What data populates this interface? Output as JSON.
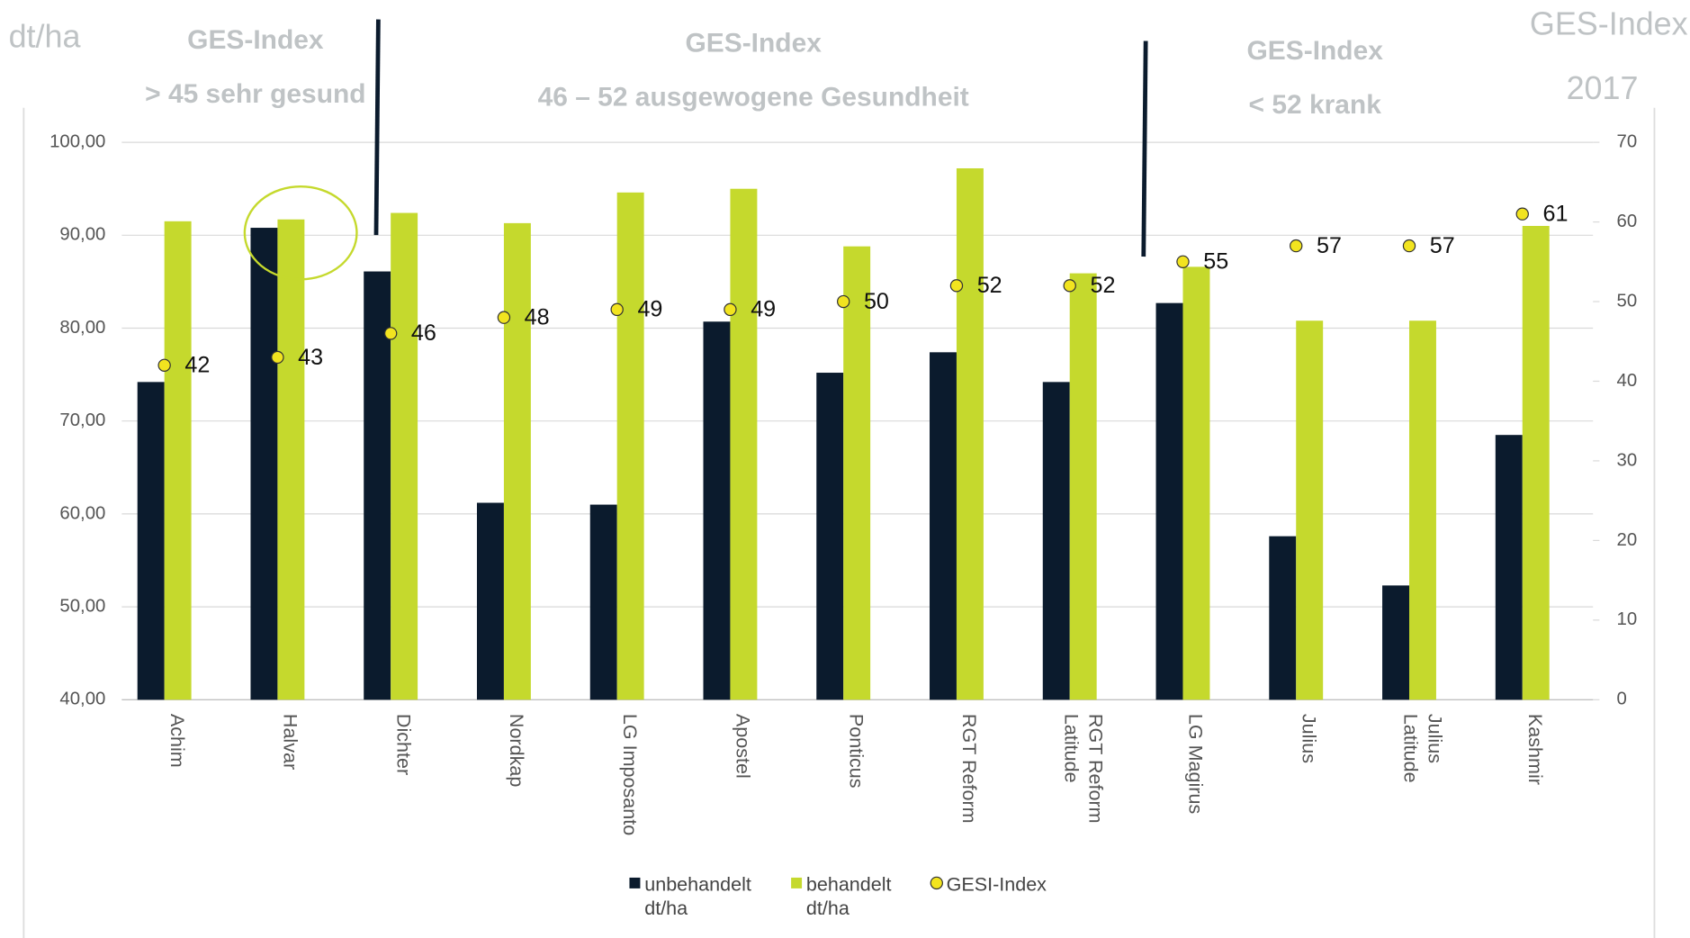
{
  "chart_data": {
    "type": "bar",
    "header": {
      "unit_left": "dt/ha",
      "unit_right": "GES-Index",
      "year": "2017",
      "zones": [
        {
          "title": "GES-Index",
          "subtitle": "> 45 sehr gesund"
        },
        {
          "title": "GES-Index",
          "subtitle": "46 – 52 ausgewogene Gesundheit"
        },
        {
          "title": "GES-Index",
          "subtitle": "< 52 krank"
        }
      ]
    },
    "categories": [
      "Achim",
      "Halvar",
      "Dichter",
      "Nordkap",
      "LG Imposanto",
      "Apostel",
      "Ponticus",
      "RGT Reform",
      "RGT Reform\nLatitude",
      "LG Magirus",
      "Julius",
      "Julius\nLatitude",
      "Kashmir"
    ],
    "series": [
      {
        "name": "unbehandelt\ndt/ha",
        "color": "#0b1b2d",
        "values": [
          74.2,
          90.8,
          86.1,
          61.2,
          61.0,
          80.7,
          75.2,
          77.4,
          74.2,
          82.7,
          57.6,
          52.3,
          68.5
        ]
      },
      {
        "name": "behandelt\ndt/ha",
        "color": "#c5d92d",
        "values": [
          91.5,
          91.7,
          92.4,
          91.3,
          94.6,
          95.0,
          88.8,
          97.2,
          85.9,
          86.6,
          80.8,
          80.8,
          91.0
        ]
      },
      {
        "name": "GESI-Index",
        "color": "#f2e41f",
        "type": "scatter",
        "axis": "y2",
        "values": [
          42,
          43,
          46,
          48,
          49,
          49,
          50,
          52,
          52,
          55,
          57,
          57,
          61
        ]
      }
    ],
    "ylim": [
      40,
      100
    ],
    "yticks": [
      {
        "value": 40,
        "label": "40,00"
      },
      {
        "value": 50,
        "label": "50,00"
      },
      {
        "value": 60,
        "label": "60,00"
      },
      {
        "value": 70,
        "label": "70,00"
      },
      {
        "value": 80,
        "label": "80,00"
      },
      {
        "value": 90,
        "label": "90,00"
      },
      {
        "value": 100,
        "label": "100,00"
      }
    ],
    "y2lim": [
      0,
      70
    ],
    "y2ticks": [
      0,
      10,
      20,
      30,
      40,
      50,
      60,
      70
    ],
    "grid": true
  }
}
